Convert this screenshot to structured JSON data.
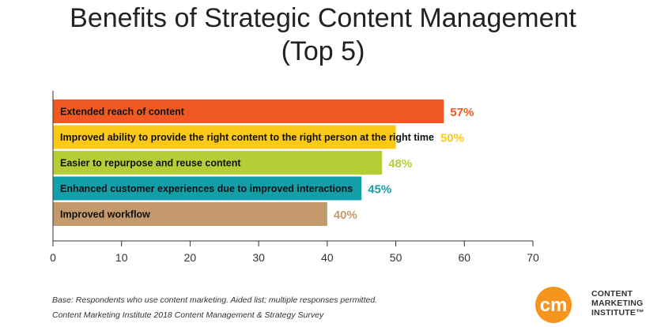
{
  "title_lines": [
    "Benefits of Strategic Content Management",
    "(Top 5)"
  ],
  "chart_data": {
    "type": "bar",
    "orientation": "horizontal",
    "categories": [
      "Extended reach of content",
      "Improved ability to provide the right content to the right person at the right time",
      "Easier to repurpose and reuse content",
      "Enhanced customer experiences due to improved interactions",
      "Improved workflow"
    ],
    "values": [
      57,
      50,
      48,
      45,
      40
    ],
    "value_labels": [
      "57%",
      "50%",
      "48%",
      "45%",
      "40%"
    ],
    "colors": [
      "#F05A22",
      "#FCC917",
      "#B3CF35",
      "#11A0AA",
      "#C49A6C"
    ],
    "xlim": [
      0,
      70
    ],
    "xticks": [
      0,
      10,
      20,
      30,
      40,
      50,
      60,
      70
    ],
    "grid": false
  },
  "footnotes": [
    "Base: Respondents who use content marketing. Aided list; multiple responses permitted.",
    "Content Marketing Institute 2018 Content Management & Strategy Survey"
  ],
  "logo": {
    "mark": "cm",
    "text_lines": [
      "CONTENT",
      "MARKETING",
      "INSTITUTE™"
    ],
    "colors": {
      "orange": "#F7941D",
      "white": "#ffffff"
    }
  }
}
